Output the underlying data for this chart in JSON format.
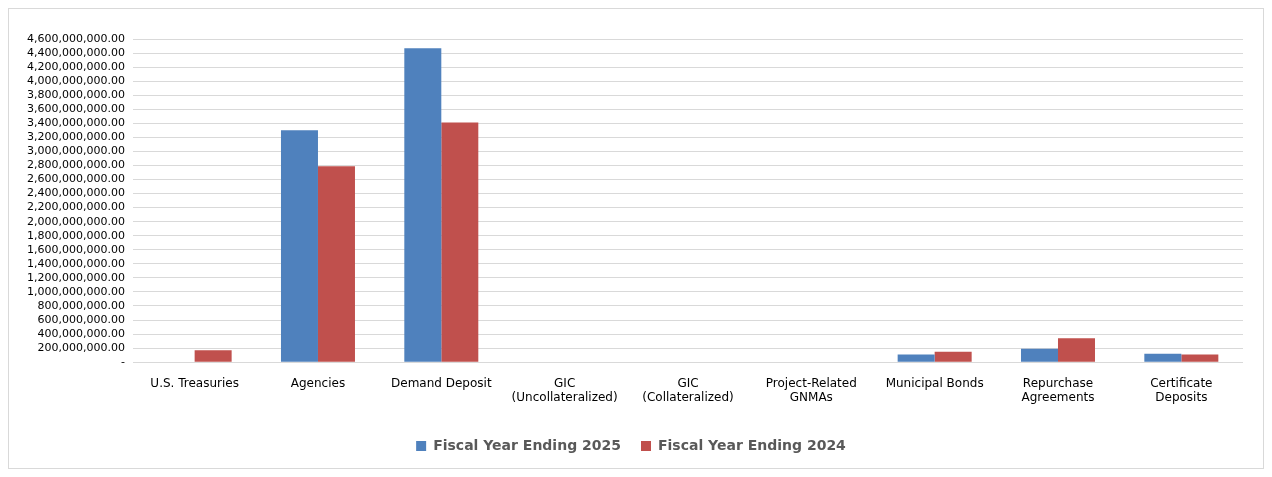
{
  "chart_data": {
    "type": "bar",
    "categories": [
      "U.S. Treasuries",
      "Agencies",
      "Demand Deposit",
      "GIC (Uncollateralized)",
      "GIC (Collateralized)",
      "Project-Related GNMAs",
      "Municipal Bonds",
      "Repurchase Agreements",
      "Certificate Deposits"
    ],
    "series": [
      {
        "name": "Fiscal Year Ending 2025",
        "color": "#4f81bd",
        "values": [
          0,
          3300000000,
          4470000000,
          0,
          0,
          0,
          110000000,
          190000000,
          120000000
        ]
      },
      {
        "name": "Fiscal Year Ending 2024",
        "color": "#c0504d",
        "values": [
          170000000,
          2790000000,
          3410000000,
          0,
          0,
          0,
          150000000,
          340000000,
          110000000
        ]
      }
    ],
    "ylim": [
      0,
      4600000000
    ],
    "yticks": [
      {
        "value": 0,
        "label": "-"
      },
      {
        "value": 200000000,
        "label": "200,000,000.00"
      },
      {
        "value": 400000000,
        "label": "400,000,000.00"
      },
      {
        "value": 600000000,
        "label": "600,000,000.00"
      },
      {
        "value": 800000000,
        "label": "800,000,000.00"
      },
      {
        "value": 1000000000,
        "label": "1,000,000,000.00"
      },
      {
        "value": 1200000000,
        "label": "1,200,000,000.00"
      },
      {
        "value": 1400000000,
        "label": "1,400,000,000.00"
      },
      {
        "value": 1600000000,
        "label": "1,600,000,000.00"
      },
      {
        "value": 1800000000,
        "label": "1,800,000,000.00"
      },
      {
        "value": 2000000000,
        "label": "2,000,000,000.00"
      },
      {
        "value": 2200000000,
        "label": "2,200,000,000.00"
      },
      {
        "value": 2400000000,
        "label": "2,400,000,000.00"
      },
      {
        "value": 2600000000,
        "label": "2,600,000,000.00"
      },
      {
        "value": 2800000000,
        "label": "2,800,000,000.00"
      },
      {
        "value": 3000000000,
        "label": "3,000,000,000.00"
      },
      {
        "value": 3200000000,
        "label": "3,200,000,000.00"
      },
      {
        "value": 3400000000,
        "label": "3,400,000,000.00"
      },
      {
        "value": 3600000000,
        "label": "3,600,000,000.00"
      },
      {
        "value": 3800000000,
        "label": "3,800,000,000.00"
      },
      {
        "value": 4000000000,
        "label": "4,000,000,000.00"
      },
      {
        "value": 4200000000,
        "label": "4,200,000,000.00"
      },
      {
        "value": 4400000000,
        "label": "4,400,000,000.00"
      },
      {
        "value": 4600000000,
        "label": "4,600,000,000.00"
      }
    ],
    "grid": "y",
    "legend": "bottom"
  }
}
